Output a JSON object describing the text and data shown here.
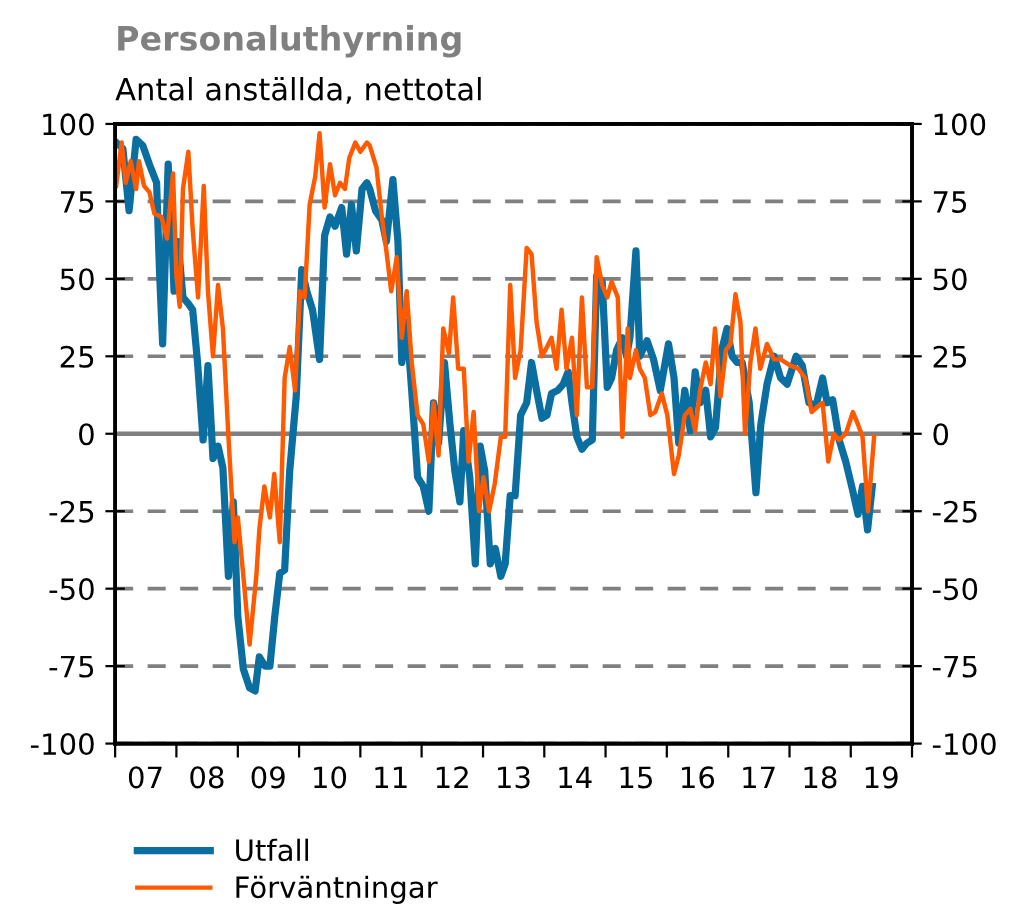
{
  "chart_data": {
    "type": "line",
    "title": "Personaluthyrning",
    "subtitle": "Antal anställda, nettotal",
    "xlim": [
      "2007-01-01",
      "2020-01-01"
    ],
    "xticks": [
      {
        "value": "2007-01-01",
        "label": null
      },
      {
        "value": "2008-01-01",
        "label": null
      },
      {
        "value": "2009-01-01",
        "label": null
      },
      {
        "value": "2010-01-01",
        "label": null
      },
      {
        "value": "2011-01-01",
        "label": null
      },
      {
        "value": "2012-01-01",
        "label": null
      },
      {
        "value": "2013-01-01",
        "label": null
      },
      {
        "value": "2014-01-01",
        "label": null
      },
      {
        "value": "2015-01-01",
        "label": null
      },
      {
        "value": "2016-01-01",
        "label": null
      },
      {
        "value": "2017-01-01",
        "label": null
      },
      {
        "value": "2018-01-01",
        "label": null
      },
      {
        "value": "2019-01-01",
        "label": null
      },
      {
        "value": "2020-01-01",
        "label": null
      },
      {
        "value": "2007-07-01",
        "label": "07"
      },
      {
        "value": "2008-07-01",
        "label": "08"
      },
      {
        "value": "2009-07-01",
        "label": "09"
      },
      {
        "value": "2010-07-01",
        "label": "10"
      },
      {
        "value": "2011-07-01",
        "label": "11"
      },
      {
        "value": "2012-07-01",
        "label": "12"
      },
      {
        "value": "2013-07-01",
        "label": "13"
      },
      {
        "value": "2014-07-01",
        "label": "14"
      },
      {
        "value": "2015-07-01",
        "label": "15"
      },
      {
        "value": "2016-07-01",
        "label": "16"
      },
      {
        "value": "2017-07-01",
        "label": "17"
      },
      {
        "value": "2018-07-01",
        "label": "18"
      },
      {
        "value": "2019-07-01",
        "label": "19"
      }
    ],
    "ylim": [
      -100,
      100
    ],
    "yticks": [
      -100,
      -75,
      -50,
      -25,
      0,
      25,
      50,
      75,
      100
    ],
    "y2lim": [
      -100,
      100
    ],
    "y2ticks": [
      -100,
      -75,
      -50,
      -25,
      0,
      25,
      50,
      75,
      100
    ],
    "grid": "y",
    "legend": "bottom",
    "ref_lines": [
      {
        "axis": "y",
        "value": 0,
        "color": "#808080",
        "line_style": "solid"
      }
    ],
    "series": [
      {
        "name": "Utfall",
        "color": "#0a6fa0",
        "x": [
          "2007-01-07",
          "2007-02-16",
          "2007-03-25",
          "2007-05-06",
          "2007-06-15",
          "2007-07-24",
          "2007-09-05",
          "2007-09-22",
          "2007-10-11",
          "2007-11-13",
          "2007-12-05",
          "2007-12-18",
          "2008-01-11",
          "2008-02-09",
          "2008-03-12",
          "2008-04-07",
          "2008-05-06",
          "2008-06-08",
          "2008-07-07",
          "2008-08-06",
          "2008-09-05",
          "2008-10-04",
          "2008-11-06",
          "2008-12-05",
          "2009-01-01",
          "2009-02-03",
          "2009-03-12",
          "2009-04-14",
          "2009-05-09",
          "2009-06-12",
          "2009-07-11",
          "2009-08-09",
          "2009-09-08",
          "2009-10-07",
          "2009-11-06",
          "2009-12-15",
          "2010-01-17",
          "2010-02-16",
          "2010-03-22",
          "2010-05-03",
          "2010-06-02",
          "2010-07-04",
          "2010-08-03",
          "2010-09-12",
          "2010-10-11",
          "2010-11-09",
          "2010-12-08",
          "2011-01-11",
          "2011-02-09",
          "2011-02-26",
          "2011-04-01",
          "2011-05-09",
          "2011-06-05",
          "2011-07-14",
          "2011-08-13",
          "2011-09-05",
          "2011-10-04",
          "2011-11-03",
          "2011-12-08",
          "2012-01-11",
          "2012-02-13",
          "2012-03-12",
          "2012-04-11",
          "2012-05-16",
          "2012-06-18",
          "2012-07-17",
          "2012-08-16",
          "2012-09-08",
          "2012-10-14",
          "2012-11-16",
          "2012-12-15",
          "2013-01-11",
          "2013-02-13",
          "2013-03-15",
          "2013-04-17",
          "2013-05-13",
          "2013-06-12",
          "2013-07-11",
          "2013-08-13",
          "2013-09-18",
          "2013-10-17",
          "2013-11-16",
          "2013-12-18",
          "2014-01-17",
          "2014-02-13",
          "2014-03-22",
          "2014-04-24",
          "2014-05-23",
          "2014-06-15",
          "2014-07-14",
          "2014-08-13",
          "2014-09-12",
          "2014-10-14",
          "2014-11-09",
          "2014-12-12",
          "2015-01-11",
          "2015-02-06",
          "2015-03-08",
          "2015-04-11",
          "2015-05-06",
          "2015-05-26",
          "2015-07-01",
          "2015-07-24",
          "2015-09-05",
          "2015-10-14",
          "2015-11-23",
          "2016-01-11",
          "2016-02-13",
          "2016-03-12",
          "2016-04-17",
          "2016-05-20",
          "2016-06-18",
          "2016-07-17",
          "2016-08-20",
          "2016-09-18",
          "2016-10-17",
          "2016-11-23",
          "2016-12-25",
          "2017-01-24",
          "2017-02-23",
          "2017-03-25",
          "2017-05-06",
          "2017-06-15",
          "2017-07-14",
          "2017-08-20",
          "2017-10-01",
          "2017-11-09",
          "2017-12-18",
          "2018-02-09",
          "2018-03-18",
          "2018-04-27",
          "2018-06-08",
          "2018-07-17",
          "2018-08-13",
          "2018-09-15",
          "2018-10-24",
          "2018-12-02",
          "2019-01-11",
          "2019-02-13",
          "2019-03-12",
          "2019-04-11",
          "2019-05-09"
        ],
        "values": [
          94,
          92,
          72,
          95,
          93,
          87,
          81,
          53,
          29,
          87,
          64,
          46,
          62,
          44,
          42,
          40,
          23,
          -2,
          22,
          -8,
          -4,
          -11,
          -46,
          -22,
          -59,
          -76,
          -82,
          -83,
          -72,
          -75,
          -75,
          -59,
          -45,
          -44,
          -12,
          12,
          53,
          46,
          40,
          24,
          64,
          70,
          67,
          73,
          58,
          74,
          59,
          79,
          81,
          79,
          72,
          69,
          62,
          82,
          62,
          23,
          36,
          14,
          -14,
          -17,
          -25,
          10,
          -3,
          23,
          3,
          -12,
          -22,
          1,
          -14,
          -42,
          -4,
          -12,
          -42,
          -37,
          -46,
          -42,
          -20,
          -20,
          6,
          10,
          23,
          14,
          5,
          6,
          13,
          14,
          16,
          20,
          10,
          -1,
          -5,
          -3,
          -2,
          51,
          49,
          15,
          18,
          27,
          31,
          25,
          31,
          59,
          25,
          30,
          24,
          14,
          29,
          18,
          -3,
          14,
          1,
          20,
          10,
          14,
          -1,
          2,
          27,
          34,
          25,
          23,
          23,
          10,
          -19,
          3,
          16,
          25,
          18,
          16,
          25,
          22,
          10,
          9,
          18,
          10,
          11,
          -2,
          -9,
          -18,
          -26,
          -17,
          -31,
          -17
        ]
      },
      {
        "name": "Förväntningar",
        "color": "#ff5a00",
        "x": [
          "2007-01-07",
          "2007-02-09",
          "2007-03-05",
          "2007-04-04",
          "2007-05-06",
          "2007-05-23",
          "2007-06-22",
          "2007-07-24",
          "2007-08-23",
          "2007-10-04",
          "2007-11-06",
          "2007-12-12",
          "2008-01-01",
          "2008-01-21",
          "2008-02-09",
          "2008-03-12",
          "2008-04-07",
          "2008-05-09",
          "2008-06-12",
          "2008-07-07",
          "2008-08-06",
          "2008-09-05",
          "2008-10-04",
          "2008-11-06",
          "2008-12-12",
          "2009-01-01",
          "2009-02-03",
          "2009-03-12",
          "2009-04-21",
          "2009-05-09",
          "2009-06-08",
          "2009-07-11",
          "2009-08-06",
          "2009-09-08",
          "2009-10-07",
          "2009-11-06",
          "2009-12-08",
          "2010-01-07",
          "2010-02-03",
          "2010-03-05",
          "2010-04-07",
          "2010-05-03",
          "2010-06-02",
          "2010-07-04",
          "2010-08-03",
          "2010-09-02",
          "2010-10-01",
          "2010-10-27",
          "2010-12-02",
          "2011-01-01",
          "2011-02-09",
          "2011-02-26",
          "2011-04-07",
          "2011-05-09",
          "2011-06-05",
          "2011-07-04",
          "2011-08-06",
          "2011-09-05",
          "2011-10-04",
          "2011-11-03",
          "2011-12-08",
          "2012-01-11",
          "2012-02-13",
          "2012-03-12",
          "2012-04-11",
          "2012-05-09",
          "2012-06-12",
          "2012-07-07",
          "2012-08-06",
          "2012-09-08",
          "2012-10-07",
          "2012-11-06",
          "2012-12-08",
          "2013-01-04",
          "2013-02-06",
          "2013-03-12",
          "2013-04-17",
          "2013-05-13",
          "2013-06-12",
          "2013-07-11",
          "2013-08-13",
          "2013-09-18",
          "2013-10-17",
          "2013-11-16",
          "2013-12-18",
          "2014-01-17",
          "2014-02-13",
          "2014-03-15",
          "2014-04-14",
          "2014-05-13",
          "2014-06-15",
          "2014-07-14",
          "2014-08-13",
          "2014-09-12",
          "2014-10-14",
          "2014-11-09",
          "2014-12-12",
          "2015-01-11",
          "2015-02-06",
          "2015-03-15",
          "2015-04-11",
          "2015-05-13",
          "2015-05-26",
          "2015-07-01",
          "2015-07-24",
          "2015-08-23",
          "2015-09-25",
          "2015-10-24",
          "2015-12-02",
          "2016-01-04",
          "2016-02-13",
          "2016-03-12",
          "2016-04-17",
          "2016-05-20",
          "2016-06-18",
          "2016-07-17",
          "2016-08-20",
          "2016-09-18",
          "2016-10-14",
          "2016-11-16",
          "2016-12-18",
          "2017-01-14",
          "2017-02-13",
          "2017-03-15",
          "2017-04-11",
          "2017-05-13",
          "2017-06-12",
          "2017-07-11",
          "2017-08-20",
          "2017-10-01",
          "2017-11-09",
          "2018-01-07",
          "2018-02-23",
          "2018-04-04",
          "2018-05-13",
          "2018-06-22",
          "2018-07-17",
          "2018-08-20",
          "2018-09-22",
          "2018-10-24",
          "2018-12-02",
          "2019-01-14",
          "2019-02-13",
          "2019-03-12",
          "2019-04-14",
          "2019-05-20"
        ],
        "values": [
          80,
          94,
          81,
          88,
          79,
          88,
          80,
          78,
          71,
          70,
          63,
          84,
          51,
          41,
          79,
          91,
          66,
          44,
          80,
          46,
          25,
          48,
          34,
          -1,
          -35,
          -27,
          -46,
          -68,
          -46,
          -31,
          -17,
          -27,
          -13,
          -35,
          18,
          28,
          14,
          46,
          44,
          74,
          83,
          97,
          73,
          87,
          77,
          81,
          79,
          89,
          94,
          91,
          94,
          93,
          86,
          70,
          59,
          46,
          57,
          31,
          46,
          23,
          6,
          3,
          -9,
          10,
          -7,
          34,
          26,
          44,
          21,
          21,
          -9,
          7,
          -25,
          -14,
          -25,
          -16,
          -1,
          -1,
          48,
          18,
          27,
          60,
          58,
          36,
          25,
          28,
          31,
          21,
          40,
          21,
          31,
          6,
          44,
          15,
          15,
          57,
          48,
          44,
          49,
          44,
          -1,
          34,
          18,
          27,
          21,
          18,
          6,
          7,
          13,
          6,
          -13,
          -7,
          6,
          8,
          1,
          14,
          23,
          16,
          34,
          12,
          27,
          29,
          45,
          36,
          0,
          23,
          34,
          21,
          29,
          24,
          24,
          22,
          21,
          18,
          7,
          9,
          10,
          -9,
          0,
          -2,
          0,
          7,
          3,
          -1,
          -25,
          -1
        ]
      }
    ]
  }
}
